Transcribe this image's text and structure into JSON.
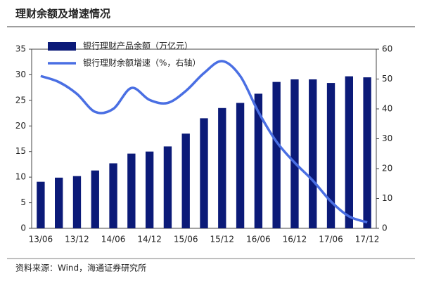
{
  "chart_data": {
    "type": "bar",
    "title": "理财余额及增速情况",
    "source": "资料来源：Wind，海通证券研究所",
    "categories": [
      "13/06",
      null,
      "13/12",
      null,
      "14/06",
      null,
      "14/12",
      null,
      "15/06",
      null,
      "15/12",
      null,
      "16/06",
      null,
      "16/12",
      null,
      "17/06",
      null,
      "17/12"
    ],
    "series": [
      {
        "name": "银行理财产品余额（万亿元）",
        "color": "#0b1a78",
        "type": "bar",
        "values": [
          9.1,
          9.9,
          10.2,
          11.3,
          12.7,
          14.6,
          15.0,
          16.0,
          18.5,
          21.5,
          23.5,
          24.5,
          26.3,
          28.6,
          29.1,
          29.1,
          28.4,
          29.7,
          29.5
        ]
      },
      {
        "name": "银行理财余额增速（%，右轴）",
        "color": "#4a6fe3",
        "type": "line",
        "axis": "y2",
        "values": [
          51,
          49,
          45,
          39,
          40,
          47,
          43,
          42,
          46,
          52,
          56,
          51,
          39,
          29,
          22,
          16,
          9,
          4,
          2
        ]
      }
    ],
    "ylim": [
      0,
      35
    ],
    "yticks": [
      0,
      5,
      10,
      15,
      20,
      25,
      30,
      35
    ],
    "y2lim": [
      0,
      60
    ],
    "y2ticks": [
      0,
      10,
      20,
      30,
      40,
      50,
      60
    ]
  }
}
